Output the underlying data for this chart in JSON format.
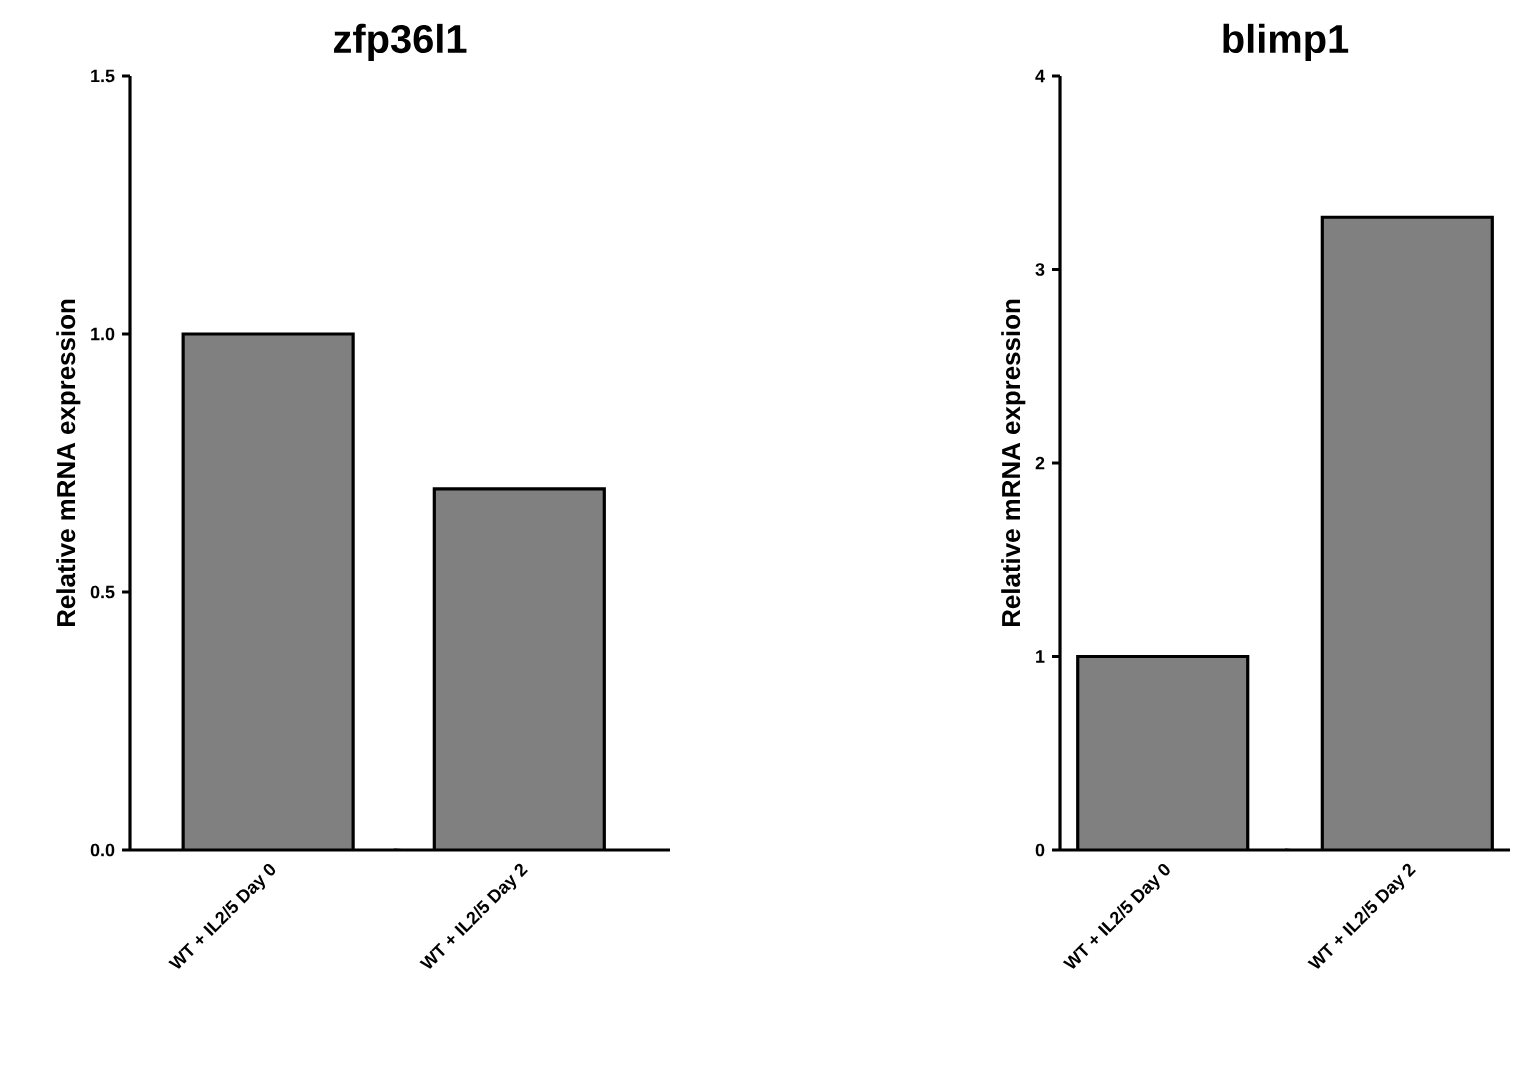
{
  "chart_data": [
    {
      "type": "bar",
      "title": "zfp36l1",
      "ylabel": "Relative mRNA expression",
      "categories": [
        "WT + IL2/5 Day 0",
        "WT + IL2/5 Day 2"
      ],
      "values": [
        1.0,
        0.7
      ],
      "color": "#808080",
      "ylim": [
        0,
        1.5
      ],
      "yticks": [
        {
          "value": 0,
          "label": "0.0"
        },
        {
          "value": 0.5,
          "label": "0.5"
        },
        {
          "value": 1,
          "label": "1.0"
        },
        {
          "value": 1.5,
          "label": "1.5"
        }
      ]
    },
    {
      "type": "bar",
      "title": "blimp1",
      "ylabel": "Relative mRNA expression",
      "categories": [
        "WT + IL2/5 Day 0",
        "WT + IL2/5 Day 2"
      ],
      "values": [
        1.0,
        3.27
      ],
      "color": "#808080",
      "ylim": [
        0,
        4
      ],
      "yticks": [
        0,
        1,
        2,
        3,
        4
      ]
    }
  ]
}
